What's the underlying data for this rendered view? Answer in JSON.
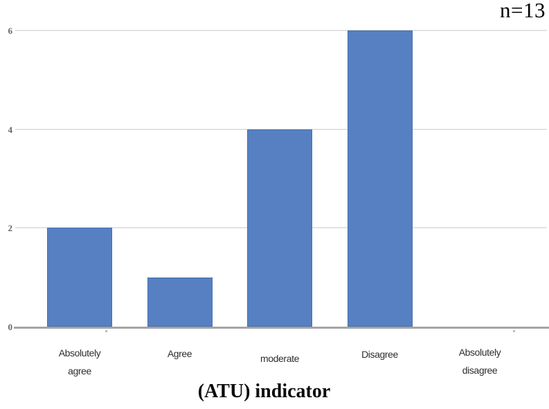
{
  "figure": {
    "sample_size_label": "n=13",
    "axis_title": "(ATU) indicator"
  },
  "chart_data": {
    "type": "bar",
    "title": "(ATU) indicator",
    "xlabel": "(ATU) indicator",
    "ylabel": "",
    "categories": [
      "Absolutely agree",
      "Agree",
      "moderate",
      "Disagree",
      "Absolutely disagree"
    ],
    "values": [
      2,
      1,
      4,
      6,
      0
    ],
    "ylim": [
      0,
      6
    ],
    "yticks": [
      0,
      2,
      4,
      6
    ],
    "grid": true,
    "legend_position": "none",
    "annotation": "n=13",
    "colors": {
      "bar_fill": "#5680c2",
      "bar_border": "#466fad",
      "gridline": "#e3e3e3",
      "axis_line": "#a4a4a4",
      "ytick_label": "#666666",
      "xtick_label": "#2d2d2d",
      "annotation_text": "#000000"
    }
  }
}
